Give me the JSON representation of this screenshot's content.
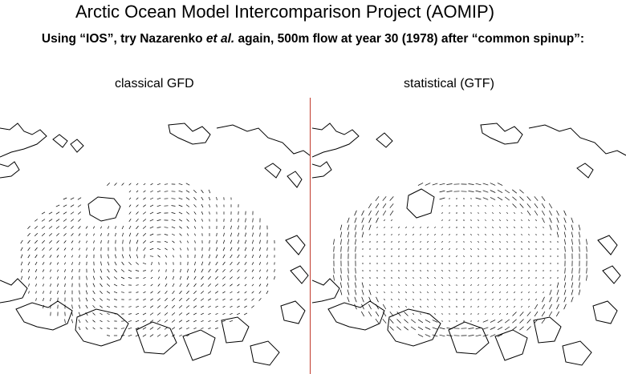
{
  "header": {
    "title": "Arctic Ocean Model Intercomparison Project (AOMIP)",
    "subtitle_pre": "Using “IOS”, try Nazarenko ",
    "subtitle_em": "et al.",
    "subtitle_post": " again, 500m flow at year 30 (1978) after “common spinup”:"
  },
  "panels": [
    {
      "label": "classical GFD"
    },
    {
      "label": "statistical (GTF)"
    }
  ],
  "colors": {
    "divider": "#c0392b",
    "ink": "#000000"
  }
}
